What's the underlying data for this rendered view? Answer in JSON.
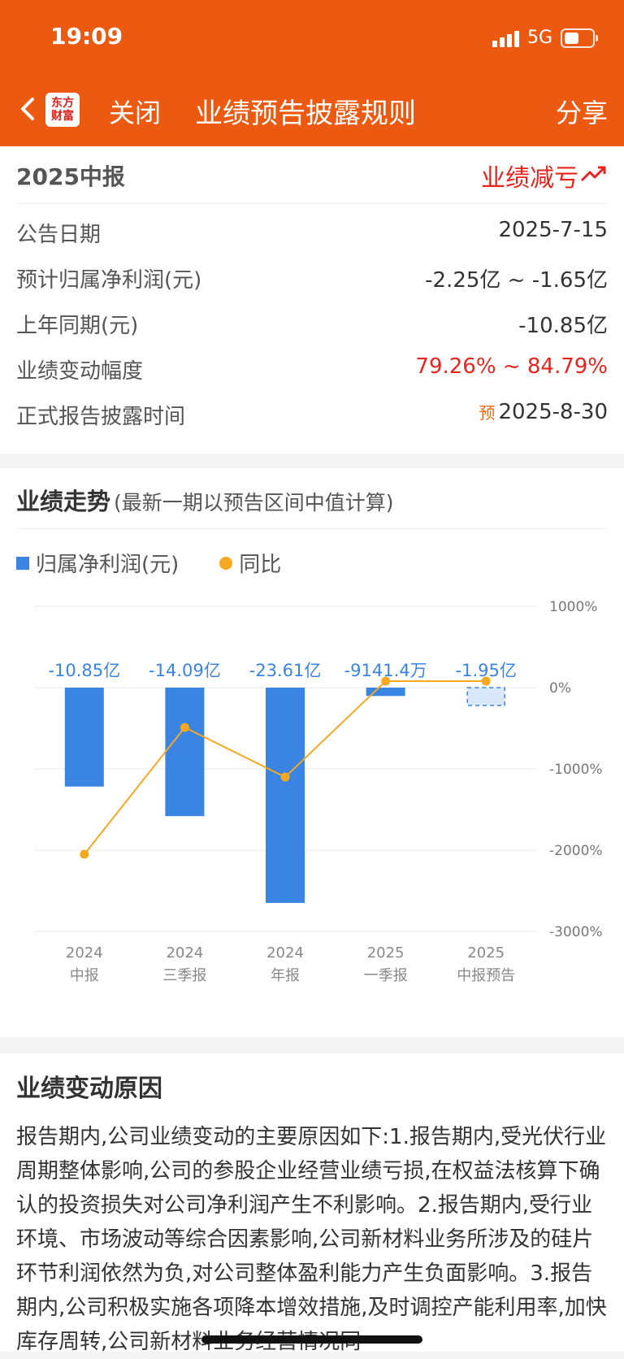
{
  "status": {
    "time": "19:09",
    "network": "5G",
    "battery_level": 0.46
  },
  "nav": {
    "logo_line1": "东方",
    "logo_line2": "财富",
    "close": "关闭",
    "title": "业绩预告披露规则",
    "share": "分享"
  },
  "summary": {
    "period": "2025中报",
    "type": "业绩减亏",
    "rows": [
      {
        "label": "公告日期",
        "value": "2025-7-15"
      },
      {
        "label": "预计归属净利润(元)",
        "value": "-2.25亿 ~ -1.65亿"
      },
      {
        "label": "上年同期(元)",
        "value": "-10.85亿"
      },
      {
        "label": "业绩变动幅度",
        "value": "79.26% ~ 84.79%"
      },
      {
        "label": "正式报告披露时间",
        "badge": "预",
        "value": "2025-8-30"
      }
    ]
  },
  "trend": {
    "title": "业绩走势",
    "subtitle": "(最新一期以预告区间中值计算)",
    "legend": [
      "归属净利润(元)",
      "同比"
    ]
  },
  "chart_data": {
    "type": "bar",
    "categories": [
      [
        "2024",
        "中报"
      ],
      [
        "2024",
        "三季报"
      ],
      [
        "2024",
        "年报"
      ],
      [
        "2025",
        "一季报"
      ],
      [
        "2025",
        "中报预告"
      ]
    ],
    "series": [
      {
        "name": "归属净利润(元)",
        "type": "bar",
        "unit": "亿",
        "values": [
          -10.85,
          -14.09,
          -23.61,
          -0.914,
          -1.95
        ],
        "labels": [
          "-10.85亿",
          "-14.09亿",
          "-23.61亿",
          "-9141.4万",
          "-1.95亿"
        ],
        "forecast_last": true
      },
      {
        "name": "同比",
        "type": "line",
        "unit": "%",
        "values": [
          -2050,
          -490,
          -1100,
          80,
          80
        ]
      }
    ],
    "y2_ticks": [
      "1000%",
      "0%",
      "-1000%",
      "-2000%",
      "-3000%"
    ],
    "y2_range": [
      -3000,
      1000
    ],
    "colors": {
      "bar": "#3a84e3",
      "line": "#f7a823",
      "label": "#3a84e3"
    }
  },
  "reason": {
    "title": "业绩变动原因",
    "text": "报告期内,公司业绩变动的主要原因如下:1.报告期内,受光伏行业周期整体影响,公司的参股企业经营业绩亏损,在权益法核算下确认的投资损失对公司净利润产生不利影响。2.报告期内,受行业环境、市场波动等综合因素影响,公司新材料业务所涉及的硅片环节利润依然为负,对公司整体盈利能力产生负面影响。3.报告期内,公司积极实施各项降本增效措施,及时调控产能利用率,加快库存周转,公司新材料业务经营情况同"
  }
}
